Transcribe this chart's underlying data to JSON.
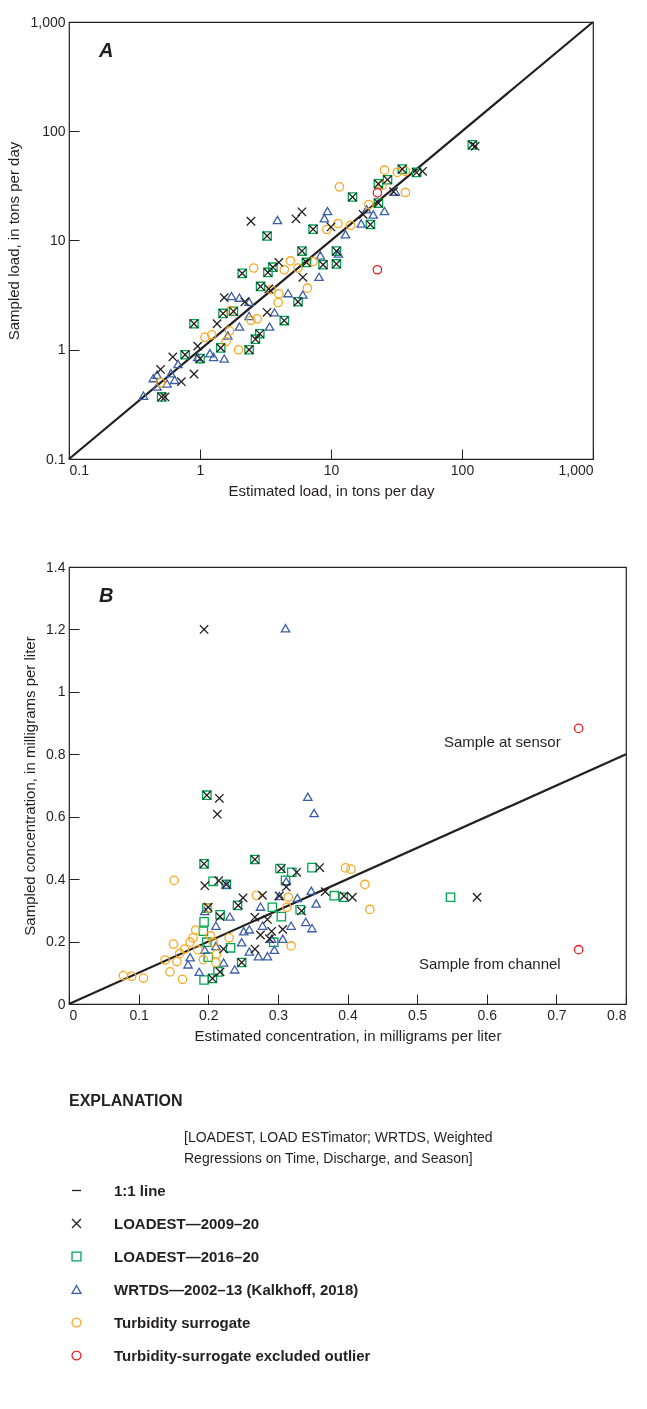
{
  "chart_data": [
    {
      "type": "scatter",
      "title": "A",
      "xlabel": "Estimated load, in tons per day",
      "ylabel": "Sampled load, in tons per day",
      "log": "xy",
      "grid": false,
      "legend": false,
      "xlim": [
        0.1,
        1000
      ],
      "ylim": [
        0.1,
        1000
      ],
      "xticks": [
        0.1,
        1,
        10,
        100,
        {
          "value": 1000,
          "label": "1,000"
        }
      ],
      "yticks": [
        0.1,
        1,
        10,
        100,
        {
          "value": 1000,
          "label": "1,000"
        }
      ],
      "series": [
        {
          "type": "line",
          "color": "#231f20",
          "x": [
            0.1,
            1000
          ],
          "values": [
            0.1,
            1000
          ]
        },
        {
          "marker": "cross",
          "color": "#231f20",
          "x": [
            126,
            50,
            30,
            17.6,
            2.45,
            5.4,
            6.0,
            10,
            4.0,
            6.1,
            3.25,
            1.53,
            1.35,
            0.96,
            0.62,
            0.9,
            0.54,
            0.72,
            0.5,
            2.2,
            3.35,
            120,
            35,
            45,
            27,
            23,
            14.6,
            23,
            20,
            7.3,
            3.25,
            6,
            11,
            11,
            8.7,
            6.5,
            3.6,
            3.3,
            2.1,
            2.9,
            5.6,
            4.4,
            1.5,
            1.8,
            0.9,
            2.65,
            2.37,
            0.77,
            1.0,
            0.51,
            1.44,
            2.86
          ],
          "values": [
            73,
            43,
            28,
            17.3,
            15,
            15.8,
            18.3,
            13.3,
            6.3,
            4.6,
            2.2,
            3.0,
            1.73,
            1.08,
            0.86,
            0.6,
            0.37,
            0.51,
            0.66,
            2.75,
            3.6,
            75,
            45,
            42,
            36,
            33,
            25,
            22,
            14,
            12.7,
            11,
            8,
            8,
            6.1,
            6,
            6.3,
            5.7,
            5.1,
            5.0,
            3.8,
            2.75,
            1.85,
            2.15,
            2.25,
            1.73,
            1.25,
            1.0,
            0.9,
            0.83,
            0.37,
            1.04,
            1.4
          ]
        },
        {
          "marker": "square",
          "color": "#00a651",
          "x": [
            120,
            35,
            45,
            27,
            23,
            14.6,
            23,
            20,
            7.3,
            3.25,
            6,
            11,
            11,
            8.7,
            6.5,
            3.6,
            3.3,
            2.1,
            2.9,
            5.6,
            4.4,
            1.5,
            1.8,
            0.9,
            2.65,
            2.37,
            0.77,
            1.0,
            0.51,
            1.44,
            2.86
          ],
          "values": [
            75,
            45,
            42,
            36,
            33,
            25,
            22,
            14,
            12.7,
            11,
            8,
            8,
            6.1,
            6,
            6.3,
            5.7,
            5.1,
            5.0,
            3.8,
            2.75,
            1.85,
            2.15,
            2.25,
            1.73,
            1.25,
            1.0,
            0.9,
            0.83,
            0.37,
            1.04,
            1.4
          ]
        },
        {
          "marker": "triangle",
          "color": "#3c5ea8",
          "x": [
            3.9,
            9.4,
            8.9,
            12.9,
            25.6,
            21,
            17,
            8.1,
            8.3,
            11.4,
            6.1,
            4.7,
            3.7,
            3.4,
            2.37,
            1.74,
            2.0,
            2.37,
            1.63,
            1.19,
            0.96,
            1.27,
            1.53,
            0.68,
            0.6,
            0.47,
            0.44,
            0.56,
            0.64,
            0.37,
            0.47,
            2.0,
            31,
            18.7
          ],
          "values": [
            15.4,
            18.6,
            16,
            11.4,
            18.6,
            17.3,
            14.3,
            4.65,
            7.3,
            7.6,
            3.2,
            3.3,
            2.2,
            1.63,
            2.75,
            3.1,
            3.0,
            2.04,
            1.35,
            0.93,
            0.86,
            0.86,
            0.83,
            0.74,
            0.61,
            0.59,
            0.55,
            0.49,
            0.53,
            0.38,
            0.46,
            1.63,
            28,
            19.3
          ]
        },
        {
          "marker": "circle",
          "color": "#f7a823",
          "x": [
            25.6,
            32,
            37,
            37,
            11.6,
            24.5,
            19.4,
            11.3,
            14.1,
            9.3,
            4.9,
            4.4,
            5.6,
            7.3,
            2.57,
            6.6,
            3.5,
            4.0,
            3.95,
            1.71,
            2.45,
            2.73,
            1.09,
            1.23,
            1.68,
            1.58,
            1.97,
            0.5
          ],
          "values": [
            44,
            42,
            43,
            27.5,
            31,
            32,
            21.3,
            14.3,
            13.8,
            12.6,
            6.5,
            5.4,
            5.6,
            6.4,
            5.6,
            3.66,
            3.55,
            3.25,
            2.7,
            2.28,
            1.86,
            1.92,
            1.3,
            1.37,
            1.49,
            1.19,
            1.0,
            0.5
          ]
        },
        {
          "marker": "circle",
          "color": "#ed1c24",
          "x": [
            22.6,
            22.6
          ],
          "values": [
            27.3,
            5.4
          ]
        }
      ]
    },
    {
      "type": "scatter",
      "title": "B",
      "xlabel": "Estimated concentration, in milligrams per liter",
      "ylabel": "Sampled concentration, in milligrams per liter",
      "grid": false,
      "legend": "bottom",
      "legend_title": "EXPLANATION",
      "xlim": [
        0,
        0.8
      ],
      "ylim": [
        0,
        1.4
      ],
      "xticks": [
        0,
        0.1,
        0.2,
        0.3,
        0.4,
        0.5,
        0.6,
        0.7,
        0.8
      ],
      "yticks": [
        0,
        0.2,
        0.4,
        0.6,
        0.8,
        1,
        1.2,
        1.4
      ],
      "annotations": [
        "[LOADEST, LOAD ESTimator; WRTDS, Weighted Regressions on Time, Discharge, and Season]",
        {
          "text": "Sample at sensor",
          "x": 0.732,
          "y": 0.883
        },
        {
          "text": "Sample from channel",
          "x": 0.732,
          "y": 0.174
        }
      ],
      "series": [
        {
          "name": "1:1 line",
          "type": "line",
          "color": "#231f20",
          "x": [
            0,
            0.8
          ],
          "values": [
            0,
            0.8
          ]
        },
        {
          "name": "LOADEST—2009–20",
          "marker": "cross",
          "color": "#231f20",
          "x": [
            0.194,
            0.216,
            0.213,
            0.198,
            0.194,
            0.267,
            0.195,
            0.215,
            0.226,
            0.305,
            0.327,
            0.36,
            0.586,
            0.407,
            0.395,
            0.368,
            0.278,
            0.25,
            0.243,
            0.312,
            0.302,
            0.267,
            0.285,
            0.291,
            0.307,
            0.275,
            0.267,
            0.222,
            0.2,
            0.217,
            0.334,
            0.248,
            0.217,
            0.206,
            0.288
          ],
          "values": [
            1.2,
            0.659,
            0.608,
            0.669,
            0.449,
            0.463,
            0.379,
            0.395,
            0.383,
            0.434,
            0.422,
            0.437,
            0.342,
            0.342,
            0.346,
            0.36,
            0.348,
            0.34,
            0.316,
            0.375,
            0.346,
            0.278,
            0.271,
            0.233,
            0.239,
            0.221,
            0.176,
            0.176,
            0.31,
            0.28,
            0.298,
            0.133,
            0.103,
            0.082,
            0.209
          ]
        },
        {
          "name": "LOADEST—2016–20",
          "marker": "square",
          "color": "#00a651",
          "x": [
            0.198,
            0.194,
            0.267,
            0.207,
            0.226,
            0.303,
            0.32,
            0.349,
            0.548,
            0.381,
            0.394,
            0.311,
            0.242,
            0.292,
            0.332,
            0.305,
            0.217,
            0.198,
            0.194,
            0.193,
            0.198,
            0.232,
            0.248,
            0.214,
            0.194,
            0.206,
            0.294,
            0.2
          ],
          "values": [
            0.669,
            0.449,
            0.463,
            0.393,
            0.383,
            0.434,
            0.422,
            0.437,
            0.342,
            0.347,
            0.342,
            0.396,
            0.316,
            0.31,
            0.302,
            0.28,
            0.286,
            0.307,
            0.263,
            0.233,
            0.198,
            0.18,
            0.133,
            0.103,
            0.077,
            0.082,
            0.198,
            0.15
          ]
        },
        {
          "name": "WRTDS—2002–13 (Kalkhoff, 2018)",
          "marker": "triangle",
          "color": "#3c5ea8",
          "x": [
            0.311,
            0.343,
            0.352,
            0.312,
            0.226,
            0.348,
            0.355,
            0.349,
            0.34,
            0.319,
            0.302,
            0.275,
            0.328,
            0.231,
            0.211,
            0.195,
            0.251,
            0.259,
            0.278,
            0.291,
            0.272,
            0.285,
            0.295,
            0.238,
            0.171,
            0.187,
            0.222,
            0.248,
            0.259,
            0.211,
            0.195,
            0.174,
            0.307
          ],
          "values": [
            1.204,
            0.664,
            0.612,
            0.393,
            0.383,
            0.363,
            0.322,
            0.243,
            0.263,
            0.251,
            0.346,
            0.312,
            0.34,
            0.28,
            0.251,
            0.298,
            0.233,
            0.239,
            0.251,
            0.209,
            0.153,
            0.153,
            0.174,
            0.111,
            0.127,
            0.103,
            0.133,
            0.198,
            0.168,
            0.186,
            0.174,
            0.15,
            0.209
          ]
        },
        {
          "name": "Turbidity surrogate",
          "marker": "circle",
          "color": "#f7a823",
          "x": [
            0.078,
            0.09,
            0.107,
            0.151,
            0.138,
            0.145,
            0.163,
            0.155,
            0.15,
            0.159,
            0.166,
            0.174,
            0.178,
            0.182,
            0.185,
            0.193,
            0.199,
            0.203,
            0.207,
            0.211,
            0.212,
            0.23,
            0.269,
            0.315,
            0.313,
            0.319,
            0.397,
            0.405,
            0.425,
            0.432
          ],
          "values": [
            0.091,
            0.089,
            0.083,
            0.396,
            0.141,
            0.103,
            0.079,
            0.136,
            0.192,
            0.162,
            0.176,
            0.198,
            0.212,
            0.237,
            0.174,
            0.142,
            0.307,
            0.218,
            0.198,
            0.133,
            0.16,
            0.212,
            0.348,
            0.342,
            0.31,
            0.186,
            0.436,
            0.432,
            0.383,
            0.303
          ]
        },
        {
          "name": "Turbidity-surrogate excluded outlier",
          "marker": "circle",
          "color": "#ed1c24",
          "x": [
            0.732,
            0.732
          ],
          "values": [
            0.883,
            0.174
          ]
        }
      ]
    }
  ]
}
